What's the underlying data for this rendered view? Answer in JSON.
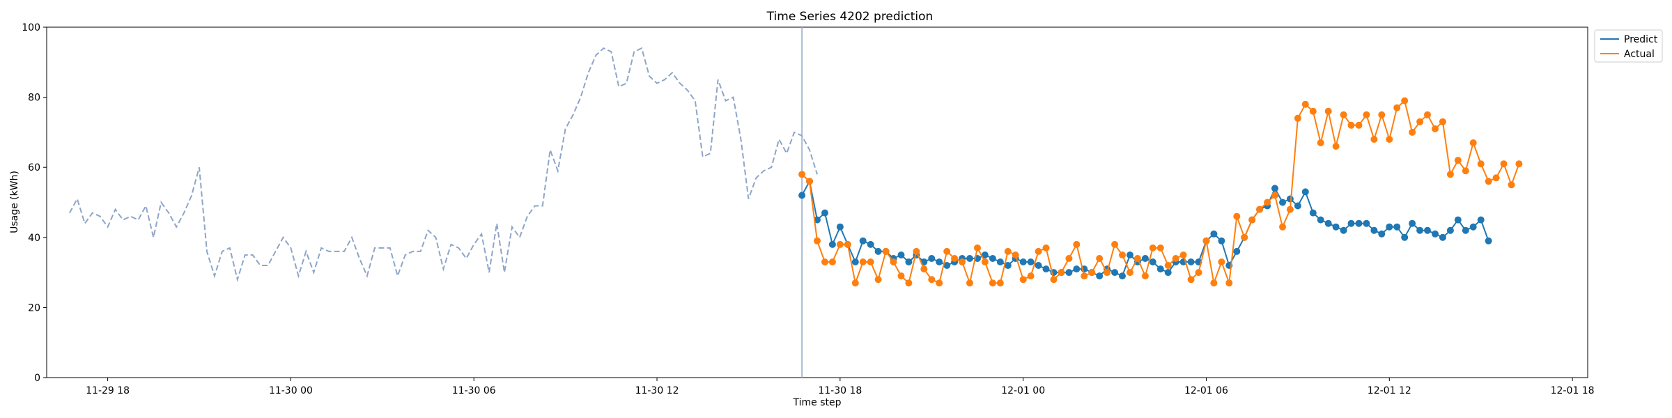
{
  "chart_data": {
    "type": "line",
    "title": "Time Series 4202 prediction",
    "xlabel": "Time step",
    "ylabel": "Usage (kWh)",
    "ylim": [
      0,
      100
    ],
    "yticks": [
      0,
      20,
      40,
      60,
      80,
      100
    ],
    "x_start": "2023-11-29 16:00",
    "x_end": "2023-12-01 18:30",
    "xticks": [
      {
        "t": "2023-11-29 18:00",
        "label": "11-29 18"
      },
      {
        "t": "2023-11-30 00:00",
        "label": "11-30 00"
      },
      {
        "t": "2023-11-30 06:00",
        "label": "11-30 06"
      },
      {
        "t": "2023-11-30 12:00",
        "label": "11-30 12"
      },
      {
        "t": "2023-11-30 18:00",
        "label": "11-30 18"
      },
      {
        "t": "2023-12-01 00:00",
        "label": "12-01 00"
      },
      {
        "t": "2023-12-01 06:00",
        "label": "12-01 06"
      },
      {
        "t": "2023-12-01 12:00",
        "label": "12-01 12"
      },
      {
        "t": "2023-12-01 18:00",
        "label": "12-01 18"
      }
    ],
    "legend_position": "top-right",
    "vline_at": "2023-11-30 16:45",
    "history": {
      "start": "2023-11-29 16:45",
      "step_minutes": 15,
      "color": "#8ea5c8",
      "values": [
        47,
        51,
        44,
        47,
        46,
        43,
        48,
        45,
        46,
        45,
        49,
        40,
        50,
        47,
        43,
        47,
        52,
        60,
        36,
        29,
        36,
        37,
        28,
        35,
        35,
        32,
        32,
        36,
        40,
        37,
        29,
        36,
        30,
        37,
        36,
        36,
        36,
        40,
        34,
        29,
        37,
        37,
        37,
        29,
        35,
        36,
        36,
        42,
        40,
        31,
        38,
        37,
        34,
        38,
        41,
        30,
        44,
        30,
        43,
        40,
        46,
        49,
        49,
        65,
        59,
        71,
        75,
        80,
        87,
        92,
        94,
        93,
        83,
        84,
        93,
        94,
        86,
        84,
        85,
        87,
        84,
        82,
        79,
        63,
        64,
        85,
        79,
        80,
        68,
        51,
        57,
        59,
        60,
        68,
        64,
        70,
        69,
        65,
        58
      ]
    },
    "series": [
      {
        "name": "Predict",
        "color": "#1f77b4",
        "start": "2023-11-30 16:45",
        "step_minutes": 15,
        "values": [
          52,
          56,
          45,
          47,
          38,
          43,
          38,
          33,
          39,
          38,
          36,
          36,
          34,
          35,
          33,
          35,
          33,
          34,
          33,
          32,
          33,
          34,
          34,
          34,
          35,
          34,
          33,
          32,
          34,
          33,
          33,
          32,
          31,
          30,
          30,
          30,
          31,
          31,
          30,
          29,
          31,
          30,
          29,
          35,
          33,
          34,
          33,
          31,
          30,
          33,
          33,
          33,
          33,
          39,
          41,
          39,
          32,
          36,
          40,
          45,
          48,
          49,
          54,
          50,
          51,
          49,
          53,
          47,
          45,
          44,
          43,
          42,
          44,
          44,
          44,
          42,
          41,
          43,
          43,
          40,
          44,
          42,
          42,
          41,
          40,
          42,
          45,
          42,
          43,
          45,
          39
        ]
      },
      {
        "name": "Actual",
        "color": "#ff7f0e",
        "start": "2023-11-30 16:45",
        "step_minutes": 15,
        "values": [
          58,
          56,
          39,
          33,
          33,
          38,
          38,
          27,
          33,
          33,
          28,
          36,
          33,
          29,
          27,
          36,
          31,
          28,
          27,
          36,
          34,
          33,
          27,
          37,
          33,
          27,
          27,
          36,
          35,
          28,
          29,
          36,
          37,
          28,
          30,
          34,
          38,
          29,
          30,
          34,
          30,
          38,
          35,
          30,
          34,
          29,
          37,
          37,
          32,
          34,
          35,
          28,
          30,
          39,
          27,
          33,
          27,
          46,
          40,
          45,
          48,
          50,
          52,
          43,
          48,
          74,
          78,
          76,
          67,
          76,
          66,
          75,
          72,
          72,
          75,
          68,
          75,
          68,
          77,
          79,
          70,
          73,
          75,
          71,
          73,
          58,
          62,
          59,
          67,
          61,
          56,
          57,
          61,
          55,
          61
        ]
      }
    ]
  }
}
